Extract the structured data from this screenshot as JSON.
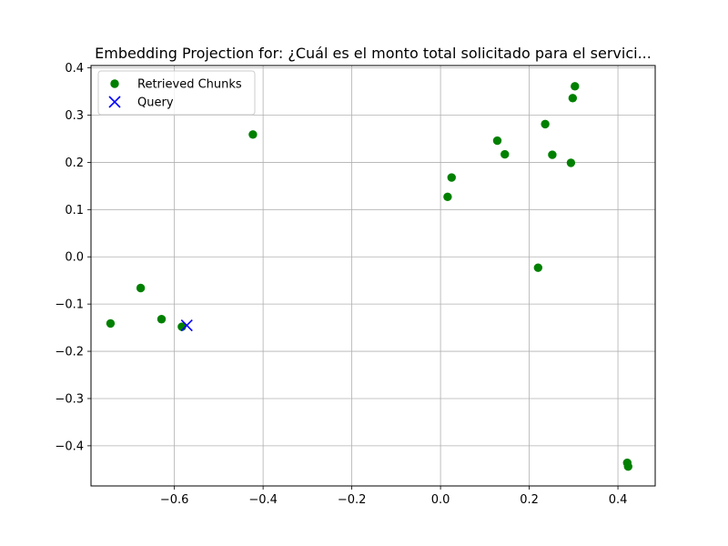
{
  "chart_data": {
    "type": "scatter",
    "title": "Embedding Projection for: ¿Cuál es el monto total solicitado para el servici...",
    "xlabel": "",
    "ylabel": "",
    "xlim": [
      -0.788,
      0.484
    ],
    "ylim": [
      -0.485,
      0.405
    ],
    "xticks": [
      -0.6,
      -0.4,
      -0.2,
      0.0,
      0.2,
      0.4
    ],
    "xtick_labels": [
      "−0.6",
      "−0.4",
      "−0.2",
      "0.0",
      "0.2",
      "0.4"
    ],
    "yticks": [
      -0.4,
      -0.3,
      -0.2,
      -0.1,
      0.0,
      0.1,
      0.2,
      0.3,
      0.4
    ],
    "ytick_labels": [
      "−0.4",
      "−0.3",
      "−0.2",
      "−0.1",
      "0.0",
      "0.1",
      "0.2",
      "0.3",
      "0.4"
    ],
    "grid": true,
    "legend_position": "top-left",
    "series": [
      {
        "name": "Retrieved Chunks",
        "marker": "circle",
        "color": "#008000",
        "points": [
          [
            -0.744,
            -0.141
          ],
          [
            -0.676,
            -0.066
          ],
          [
            -0.629,
            -0.132
          ],
          [
            -0.583,
            -0.148
          ],
          [
            -0.423,
            0.259
          ],
          [
            0.016,
            0.127
          ],
          [
            0.025,
            0.168
          ],
          [
            0.128,
            0.246
          ],
          [
            0.145,
            0.217
          ],
          [
            0.22,
            -0.023
          ],
          [
            0.236,
            0.281
          ],
          [
            0.252,
            0.216
          ],
          [
            0.294,
            0.199
          ],
          [
            0.298,
            0.336
          ],
          [
            0.303,
            0.361
          ],
          [
            0.421,
            -0.436
          ],
          [
            0.423,
            -0.444
          ]
        ]
      },
      {
        "name": "Query",
        "marker": "x",
        "color": "#0000ff",
        "points": [
          [
            -0.572,
            -0.145
          ]
        ]
      }
    ]
  }
}
